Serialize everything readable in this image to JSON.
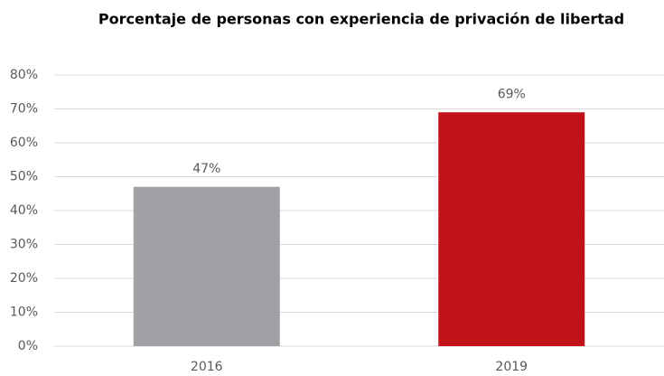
{
  "chart_data": {
    "type": "bar",
    "title": "Porcentaje de personas con experiencia de privación de libertad",
    "categories": [
      "2016",
      "2019"
    ],
    "values": [
      47,
      69
    ],
    "value_labels": [
      "47%",
      "69%"
    ],
    "colors": [
      "#a0a1a4",
      "#c1121a"
    ],
    "ylim": [
      0,
      80
    ],
    "yticks": [
      {
        "value": 0,
        "label": "0%"
      },
      {
        "value": 10,
        "label": "10%"
      },
      {
        "value": 20,
        "label": "20%"
      },
      {
        "value": 30,
        "label": "30%"
      },
      {
        "value": 40,
        "label": "40%"
      },
      {
        "value": 50,
        "label": "50%"
      },
      {
        "value": 60,
        "label": "60%"
      },
      {
        "value": 70,
        "label": "70%"
      },
      {
        "value": 80,
        "label": "80%"
      }
    ],
    "grid": true
  }
}
